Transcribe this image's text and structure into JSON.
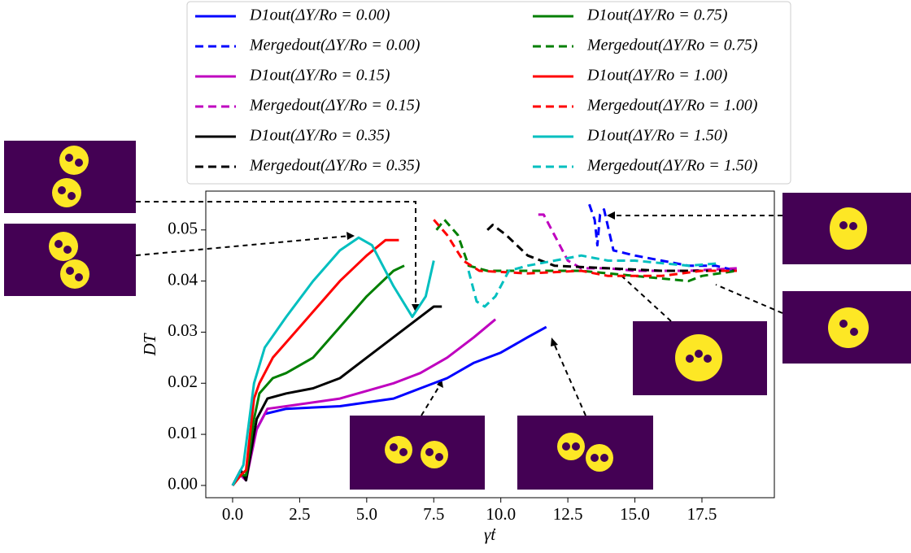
{
  "chart_data": {
    "type": "line",
    "xlabel": "γ̇t",
    "ylabel": "DT",
    "xlim": [
      -1.0,
      20.2
    ],
    "ylim": [
      -0.0024,
      0.0576
    ],
    "xticks": [
      {
        "value": 0,
        "label": "0.0"
      },
      {
        "value": 2.5,
        "label": "2.5"
      },
      {
        "value": 5,
        "label": "5.0"
      },
      {
        "value": 7.5,
        "label": "7.5"
      },
      {
        "value": 10,
        "label": "10.0"
      },
      {
        "value": 12.5,
        "label": "12.5"
      },
      {
        "value": 15,
        "label": "15.0"
      },
      {
        "value": 17.5,
        "label": "17.5"
      }
    ],
    "yticks": [
      {
        "value": 0,
        "label": "0.00"
      },
      {
        "value": 0.01,
        "label": "0.01"
      },
      {
        "value": 0.02,
        "label": "0.02"
      },
      {
        "value": 0.03,
        "label": "0.03"
      },
      {
        "value": 0.04,
        "label": "0.04"
      },
      {
        "value": 0.05,
        "label": "0.05"
      }
    ],
    "series": [
      {
        "name": "D1out(ΔY/Ro = 0.00)",
        "color": "#0000ff",
        "dash": false,
        "x": [
          0,
          0.3,
          0.5,
          0.8,
          1.2,
          2,
          4,
          6,
          7,
          8,
          9,
          10,
          11,
          11.7
        ],
        "values": [
          0,
          0.003,
          0.001,
          0.01,
          0.014,
          0.015,
          0.0155,
          0.017,
          0.019,
          0.021,
          0.024,
          0.026,
          0.029,
          0.031
        ]
      },
      {
        "name": "Mergedout(ΔY/Ro = 0.00)",
        "color": "#0000ff",
        "dash": true,
        "x": [
          13.3,
          13.5,
          13.6,
          13.7,
          13.85,
          14.2,
          15,
          16,
          17,
          18,
          18.8
        ],
        "values": [
          0.055,
          0.052,
          0.047,
          0.053,
          0.054,
          0.046,
          0.045,
          0.044,
          0.043,
          0.043,
          0.042
        ]
      },
      {
        "name": "D1out(ΔY/Ro = 0.15)",
        "color": "#bf00bf",
        "dash": false,
        "x": [
          0,
          0.3,
          0.5,
          0.9,
          1.3,
          2,
          4,
          6,
          7,
          8,
          9,
          9.8
        ],
        "values": [
          0,
          0.002,
          0.001,
          0.011,
          0.015,
          0.0155,
          0.017,
          0.02,
          0.022,
          0.025,
          0.029,
          0.0325
        ]
      },
      {
        "name": "Mergedout(ΔY/Ro = 0.15)",
        "color": "#bf00bf",
        "dash": true,
        "x": [
          11.4,
          11.6,
          12,
          12.5,
          13,
          14,
          15,
          16,
          17,
          18.8
        ],
        "values": [
          0.053,
          0.053,
          0.049,
          0.044,
          0.0425,
          0.0425,
          0.042,
          0.042,
          0.042,
          0.0425
        ]
      },
      {
        "name": "D1out(ΔY/Ro = 0.35)",
        "color": "#000000",
        "dash": false,
        "x": [
          0,
          0.3,
          0.5,
          0.9,
          1.3,
          2,
          3,
          4,
          5,
          6,
          7,
          7.5,
          7.8
        ],
        "values": [
          0,
          0.003,
          0.001,
          0.013,
          0.017,
          0.018,
          0.019,
          0.021,
          0.025,
          0.029,
          0.033,
          0.035,
          0.035
        ]
      },
      {
        "name": "Mergedout(ΔY/Ro = 0.35)",
        "color": "#000000",
        "dash": true,
        "x": [
          9.5,
          9.7,
          10.2,
          11,
          12,
          14,
          16,
          17,
          18.8
        ],
        "values": [
          0.05,
          0.051,
          0.049,
          0.045,
          0.043,
          0.0425,
          0.042,
          0.042,
          0.042
        ]
      },
      {
        "name": "D1out(ΔY/Ro = 0.75)",
        "color": "#007f00",
        "dash": false,
        "x": [
          0,
          0.3,
          0.5,
          0.8,
          1,
          1.5,
          2,
          3,
          4,
          5,
          6,
          6.4
        ],
        "values": [
          0,
          0.002,
          0.002,
          0.013,
          0.018,
          0.021,
          0.022,
          0.025,
          0.031,
          0.037,
          0.042,
          0.043
        ]
      },
      {
        "name": "Mergedout(ΔY/Ro = 0.75)",
        "color": "#007f00",
        "dash": true,
        "x": [
          7.6,
          7.9,
          8.4,
          8.8,
          9.5,
          11,
          13,
          15,
          17,
          17.5,
          18.8
        ],
        "values": [
          0.05,
          0.052,
          0.049,
          0.043,
          0.042,
          0.042,
          0.042,
          0.041,
          0.04,
          0.041,
          0.042
        ]
      },
      {
        "name": "D1out(ΔY/Ro = 1.00)",
        "color": "#ff0000",
        "dash": false,
        "x": [
          0,
          0.3,
          0.5,
          0.8,
          1,
          1.5,
          2,
          3,
          4,
          5,
          5.7,
          6.2
        ],
        "values": [
          0,
          0.002,
          0.003,
          0.017,
          0.02,
          0.025,
          0.028,
          0.034,
          0.04,
          0.045,
          0.048,
          0.048
        ]
      },
      {
        "name": "Mergedout(ΔY/Ro = 1.00)",
        "color": "#ff0000",
        "dash": true,
        "x": [
          7.5,
          8,
          8.6,
          9.2,
          11,
          13,
          14,
          16,
          17.5,
          18.8
        ],
        "values": [
          0.052,
          0.049,
          0.044,
          0.042,
          0.0415,
          0.042,
          0.041,
          0.041,
          0.042,
          0.042
        ]
      },
      {
        "name": "D1out(ΔY/Ro = 1.50)",
        "color": "#00bfbf",
        "dash": false,
        "x": [
          0,
          0.4,
          0.6,
          0.8,
          1.2,
          2,
          3,
          4,
          4.7,
          5.2,
          6,
          6.7,
          7.2,
          7.5
        ],
        "values": [
          0,
          0.004,
          0.012,
          0.02,
          0.027,
          0.033,
          0.04,
          0.046,
          0.0485,
          0.047,
          0.039,
          0.033,
          0.037,
          0.044
        ]
      },
      {
        "name": "Mergedout(ΔY/Ro = 1.50)",
        "color": "#00bfbf",
        "dash": true,
        "x": [
          8.8,
          9.1,
          9.4,
          9.8,
          10.3,
          11,
          12,
          13,
          14,
          15,
          17,
          18.2
        ],
        "values": [
          0.042,
          0.036,
          0.035,
          0.037,
          0.042,
          0.043,
          0.044,
          0.045,
          0.044,
          0.044,
          0.043,
          0.0435
        ]
      }
    ]
  }
}
